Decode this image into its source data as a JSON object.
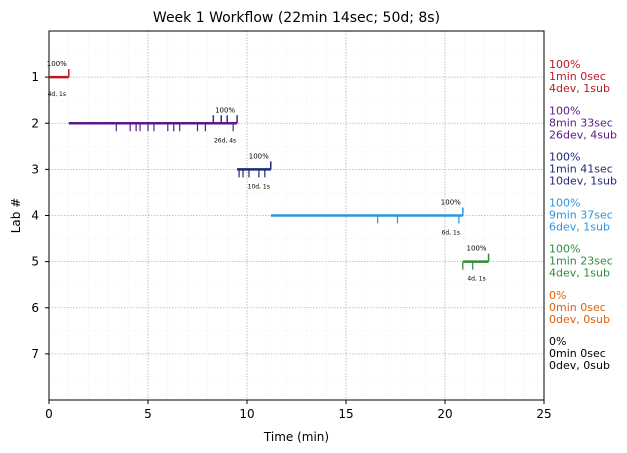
{
  "chart_data": {
    "type": "timeline",
    "title": "Week 1 Workflow (22min 14sec; 50d; 8s)",
    "xlabel": "Time (min)",
    "ylabel": "Lab #",
    "xlim": [
      0,
      25
    ],
    "ylim": [
      0,
      8
    ],
    "x_ticks": [
      "0",
      "5",
      "10",
      "15",
      "20",
      "25"
    ],
    "y_ticks": [
      "1",
      "2",
      "3",
      "4",
      "5",
      "6",
      "7"
    ],
    "grid": true,
    "labs": [
      {
        "lab": 1,
        "color": "#c0161f",
        "start": 0.0,
        "end": 1.0,
        "dev_marks": [],
        "sub_marks": [
          1.0
        ],
        "pct_small": "100%",
        "cnt_small": "4d, 1s",
        "right_pct": "100%",
        "right_time": "1min 0sec",
        "right_counts": "4dev, 1sub"
      },
      {
        "lab": 2,
        "color": "#5a1a8c",
        "start": 1.0,
        "end": 9.5,
        "dev_marks": [
          3.4,
          4.1,
          4.4,
          4.6,
          5.0,
          5.3,
          6.0,
          6.3,
          6.6,
          7.5,
          7.9,
          9.3
        ],
        "sub_marks": [
          8.3,
          8.7,
          9.0,
          9.5
        ],
        "pct_small": "100%",
        "cnt_small": "26d, 4s",
        "right_pct": "100%",
        "right_time": "8min 33sec",
        "right_counts": "26dev, 4sub"
      },
      {
        "lab": 3,
        "color": "#1f2a78",
        "start": 9.5,
        "end": 11.2,
        "dev_marks": [
          9.6,
          9.8,
          10.1,
          10.6,
          10.9
        ],
        "sub_marks": [
          11.2
        ],
        "pct_small": "100%",
        "cnt_small": "10d, 1s",
        "right_pct": "100%",
        "right_time": "1min 41sec",
        "right_counts": "10dev, 1sub"
      },
      {
        "lab": 4,
        "color": "#2b96e0",
        "start": 11.2,
        "end": 20.9,
        "dev_marks": [
          16.6,
          17.6,
          20.7
        ],
        "sub_marks": [
          20.9
        ],
        "pct_small": "100%",
        "cnt_small": "6d, 1s",
        "right_pct": "100%",
        "right_time": "9min 37sec",
        "right_counts": "6dev, 1sub"
      },
      {
        "lab": 5,
        "color": "#2e8b3a",
        "start": 20.9,
        "end": 22.2,
        "dev_marks": [
          20.9,
          21.4
        ],
        "sub_marks": [
          22.2
        ],
        "pct_small": "100%",
        "cnt_small": "4d, 1s",
        "right_pct": "100%",
        "right_time": "1min 23sec",
        "right_counts": "4dev, 1sub"
      },
      {
        "lab": 6,
        "color": "#e0600e",
        "start": null,
        "end": null,
        "dev_marks": [],
        "sub_marks": [],
        "pct_small": "",
        "cnt_small": "",
        "right_pct": "0%",
        "right_time": "0min 0sec",
        "right_counts": "0dev, 0sub"
      },
      {
        "lab": 7,
        "color": "#000000",
        "start": null,
        "end": null,
        "dev_marks": [],
        "sub_marks": [],
        "pct_small": "",
        "cnt_small": "",
        "right_pct": "0%",
        "right_time": "0min 0sec",
        "right_counts": "0dev, 0sub"
      }
    ]
  }
}
